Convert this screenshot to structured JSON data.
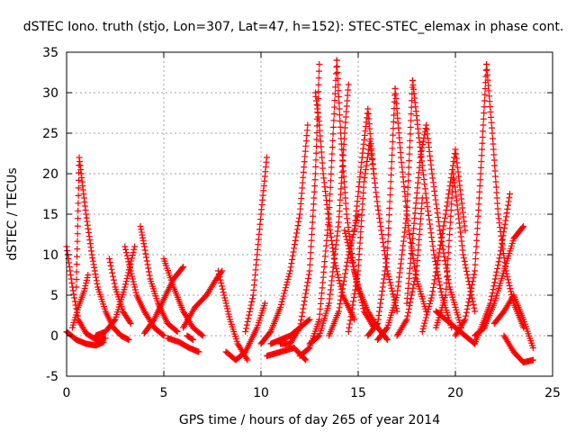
{
  "chart_data": {
    "type": "scatter",
    "title": "dSTEC Iono. truth (stjo, Lon=307, Lat=47, h=152): STEC-STEC_elemax in phase cont.",
    "xlabel": "GPS time / hours of day 265 of year 2014",
    "ylabel": "dSTEC  / TECUs",
    "xlim": [
      0,
      25
    ],
    "ylim": [
      -5,
      35
    ],
    "xticks": [
      0,
      5,
      10,
      15,
      20,
      25
    ],
    "yticks": [
      -5,
      0,
      5,
      10,
      15,
      20,
      25,
      30,
      35
    ],
    "grid": true,
    "marker": "+",
    "color": "#ff0000",
    "series": [
      {
        "x": [
          0.0,
          0.3,
          0.6,
          1.0,
          1.5,
          2.0
        ],
        "y": [
          11.0,
          6.0,
          2.0,
          0.3,
          -0.5,
          -0.3
        ]
      },
      {
        "x": [
          0.0,
          0.5,
          1.0,
          1.5,
          1.9
        ],
        "y": [
          0.5,
          -0.5,
          -1.0,
          -1.2,
          -0.8
        ]
      },
      {
        "x": [
          0.5,
          0.65,
          0.8,
          1.0,
          1.3,
          1.6,
          2.0,
          2.4,
          2.8,
          3.2
        ],
        "y": [
          6.0,
          22.0,
          19.0,
          15.0,
          10.0,
          6.0,
          3.0,
          1.0,
          0.0,
          -0.5
        ]
      },
      {
        "x": [
          0.3,
          0.6,
          0.9,
          1.1
        ],
        "y": [
          1.0,
          3.5,
          5.5,
          7.5
        ]
      },
      {
        "x": [
          1.5,
          2.0,
          2.5,
          3.0,
          3.5
        ],
        "y": [
          0.0,
          0.5,
          2.0,
          6.0,
          11.0
        ]
      },
      {
        "x": [
          2.2,
          2.5,
          2.9,
          3.3
        ],
        "y": [
          9.5,
          6.0,
          3.0,
          1.5
        ]
      },
      {
        "x": [
          3.0,
          3.3,
          3.6,
          4.0,
          4.5,
          5.0
        ],
        "y": [
          11.0,
          8.0,
          5.0,
          3.0,
          1.0,
          0.0
        ]
      },
      {
        "x": [
          3.8,
          4.0,
          4.3,
          4.7,
          5.2,
          5.7
        ],
        "y": [
          13.5,
          11.0,
          7.0,
          4.0,
          1.5,
          0.5
        ]
      },
      {
        "x": [
          4.0,
          4.5,
          5.0,
          5.5,
          6.0
        ],
        "y": [
          0.3,
          2.0,
          4.5,
          7.0,
          8.5
        ]
      },
      {
        "x": [
          5.0,
          5.5,
          6.0,
          6.5,
          7.0
        ],
        "y": [
          9.5,
          6.0,
          3.0,
          1.0,
          0.0
        ]
      },
      {
        "x": [
          5.2,
          5.8,
          6.3,
          6.8
        ],
        "y": [
          -0.3,
          -0.8,
          -1.5,
          -2.0
        ]
      },
      {
        "x": [
          6.0,
          6.6,
          7.2,
          7.7,
          8.0
        ],
        "y": [
          1.0,
          3.5,
          5.0,
          7.0,
          8.0
        ]
      },
      {
        "x": [
          6.2,
          6.5
        ],
        "y": [
          0.0,
          -0.5
        ]
      },
      {
        "x": [
          7.8,
          8.1,
          8.4,
          8.8,
          9.3
        ],
        "y": [
          8.0,
          5.0,
          2.0,
          -1.0,
          -3.0
        ]
      },
      {
        "x": [
          8.2,
          8.7,
          9.2,
          9.8,
          10.2
        ],
        "y": [
          -2.0,
          -3.0,
          -2.0,
          1.0,
          4.0
        ]
      },
      {
        "x": [
          9.2,
          9.6,
          10.0,
          10.3
        ],
        "y": [
          0.5,
          5.0,
          15.0,
          22.0
        ]
      },
      {
        "x": [
          10.3,
          11.0,
          11.7,
          12.3
        ],
        "y": [
          -2.5,
          -2.0,
          -1.5,
          -3.0
        ]
      },
      {
        "x": [
          10.5,
          11.0,
          11.5,
          12.0,
          12.5
        ],
        "y": [
          -1.0,
          -0.5,
          0.0,
          1.0,
          2.0
        ]
      },
      {
        "x": [
          10.0,
          10.5,
          11.0,
          11.5,
          12.0,
          12.4
        ],
        "y": [
          -1.0,
          0.5,
          3.5,
          8.0,
          15.0,
          26.0
        ]
      },
      {
        "x": [
          11.0,
          11.5,
          12.0,
          12.5,
          12.8,
          13.0
        ],
        "y": [
          -1.0,
          -1.0,
          1.0,
          8.0,
          20.0,
          33.5
        ]
      },
      {
        "x": [
          12.8,
          13.0,
          13.2,
          13.5,
          13.8,
          14.2,
          14.8
        ],
        "y": [
          30.0,
          26.0,
          20.0,
          14.0,
          9.0,
          5.0,
          2.0
        ]
      },
      {
        "x": [
          12.0,
          12.5,
          13.0,
          13.5,
          13.9
        ],
        "y": [
          -2.5,
          -1.5,
          2.0,
          15.0,
          34.0
        ]
      },
      {
        "x": [
          13.9,
          14.1,
          14.4,
          14.8,
          15.3,
          15.8
        ],
        "y": [
          34.0,
          25.0,
          15.0,
          8.0,
          3.0,
          1.0
        ]
      },
      {
        "x": [
          12.5,
          13.0,
          13.5,
          14.0,
          14.3,
          14.5
        ],
        "y": [
          -1.0,
          0.0,
          4.0,
          14.0,
          25.0,
          31.0
        ]
      },
      {
        "x": [
          13.5,
          14.0,
          14.5,
          15.0
        ],
        "y": [
          0.0,
          3.0,
          10.0,
          15.0
        ]
      },
      {
        "x": [
          14.3,
          14.6,
          15.0,
          15.5,
          16.0,
          16.5
        ],
        "y": [
          13.0,
          10.0,
          6.0,
          3.0,
          1.0,
          -0.5
        ]
      },
      {
        "x": [
          14.5,
          15.0,
          15.3,
          15.6,
          16.0,
          16.5,
          17.0
        ],
        "y": [
          0.5,
          8.0,
          19.0,
          24.0,
          16.0,
          8.0,
          3.0
        ]
      },
      {
        "x": [
          14.8,
          15.2,
          15.5,
          15.8
        ],
        "y": [
          13.0,
          22.0,
          28.0,
          20.0
        ]
      },
      {
        "x": [
          15.5,
          16.0,
          16.5,
          16.9
        ],
        "y": [
          0.0,
          1.5,
          10.0,
          30.5
        ]
      },
      {
        "x": [
          16.9,
          17.2,
          17.6,
          18.0,
          18.5
        ],
        "y": [
          30.5,
          22.0,
          13.0,
          7.0,
          3.0
        ]
      },
      {
        "x": [
          16.0,
          16.5,
          17.0,
          17.5,
          17.8
        ],
        "y": [
          -0.5,
          1.0,
          5.0,
          15.0,
          31.5
        ]
      },
      {
        "x": [
          17.8,
          18.1,
          18.5,
          18.9,
          19.3,
          19.8
        ],
        "y": [
          31.5,
          25.0,
          17.0,
          10.0,
          5.0,
          1.0
        ]
      },
      {
        "x": [
          17.5,
          17.8,
          18.2,
          18.5,
          18.8,
          19.2,
          19.7,
          20.3
        ],
        "y": [
          4.0,
          12.0,
          22.0,
          26.0,
          20.0,
          13.0,
          6.0,
          1.0
        ]
      },
      {
        "x": [
          17.0,
          17.5,
          18.0,
          18.3
        ],
        "y": [
          0.0,
          2.0,
          8.0,
          17.0
        ]
      },
      {
        "x": [
          18.3,
          18.8,
          19.5,
          20.0,
          20.5
        ],
        "y": [
          0.5,
          5.0,
          15.0,
          23.0,
          13.0
        ]
      },
      {
        "x": [
          19.0,
          19.5,
          19.9,
          20.4,
          21.0
        ],
        "y": [
          1.0,
          5.0,
          20.0,
          10.0,
          3.0
        ]
      },
      {
        "x": [
          19.0,
          19.5,
          20.0,
          20.5,
          21.0
        ],
        "y": [
          3.0,
          2.0,
          1.0,
          0.0,
          -1.0
        ]
      },
      {
        "x": [
          20.0,
          20.5,
          21.0,
          21.3,
          21.6
        ],
        "y": [
          0.0,
          2.0,
          8.0,
          20.0,
          33.5
        ]
      },
      {
        "x": [
          21.6,
          21.9,
          22.2,
          22.6,
          23.0,
          23.5
        ],
        "y": [
          33.5,
          25.0,
          15.0,
          8.0,
          4.0,
          1.0
        ]
      },
      {
        "x": [
          21.0,
          21.5,
          22.0,
          22.5,
          23.0,
          23.5
        ],
        "y": [
          0.0,
          1.0,
          4.0,
          8.0,
          12.0,
          13.5
        ]
      },
      {
        "x": [
          22.0,
          22.5,
          23.0,
          23.5,
          24.0
        ],
        "y": [
          1.5,
          3.0,
          5.0,
          2.0,
          -1.5
        ]
      },
      {
        "x": [
          21.0,
          21.8,
          22.3,
          22.8
        ],
        "y": [
          -1.0,
          4.0,
          10.0,
          17.5
        ]
      },
      {
        "x": [
          22.5,
          23.0,
          23.5,
          24.0
        ],
        "y": [
          0.0,
          -2.0,
          -3.3,
          -3.0
        ]
      }
    ]
  }
}
